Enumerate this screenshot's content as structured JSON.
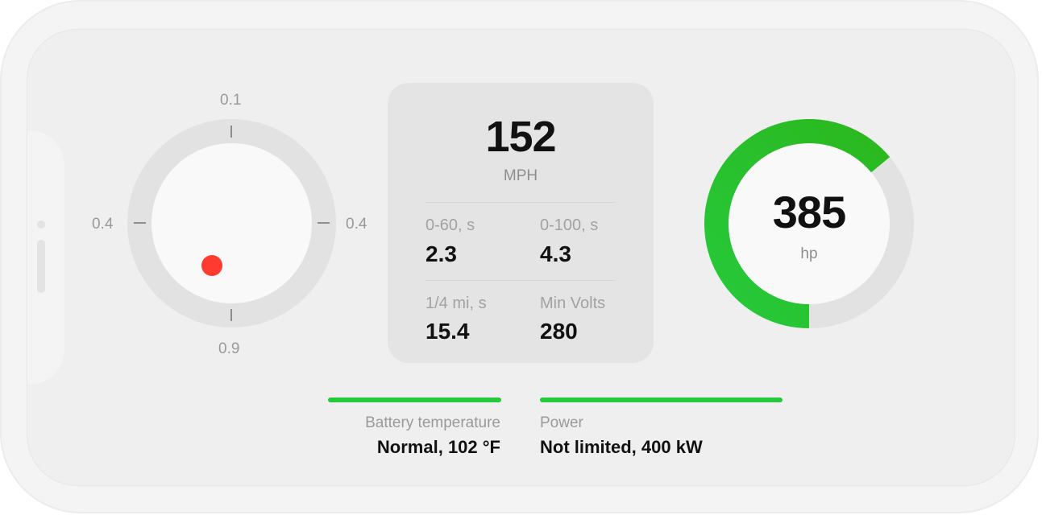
{
  "gforce": {
    "top_label": "0.1",
    "left_label": "0.4",
    "right_label": "0.4",
    "bottom_label": "0.9",
    "dot_color": "#ff3b30"
  },
  "stats": {
    "speed": "152",
    "speed_unit": "MPH",
    "items": [
      {
        "label": "0-60, s",
        "value": "2.3"
      },
      {
        "label": "0-100, s",
        "value": "4.3"
      },
      {
        "label": "1/4 mi, s",
        "value": "15.4"
      },
      {
        "label": "Min Volts",
        "value": "280"
      }
    ]
  },
  "horsepower": {
    "value": "385",
    "unit": "hp",
    "level_fraction": 0.64,
    "accent_start": "#26c93b",
    "accent_end": "#2bb81e"
  },
  "indicators": [
    {
      "label": "Battery temperature",
      "value": "Normal, 102 °F",
      "color": "#26c93b"
    },
    {
      "label": "Power",
      "value": "Not limited, 400 kW",
      "color": "#26c93b"
    }
  ]
}
